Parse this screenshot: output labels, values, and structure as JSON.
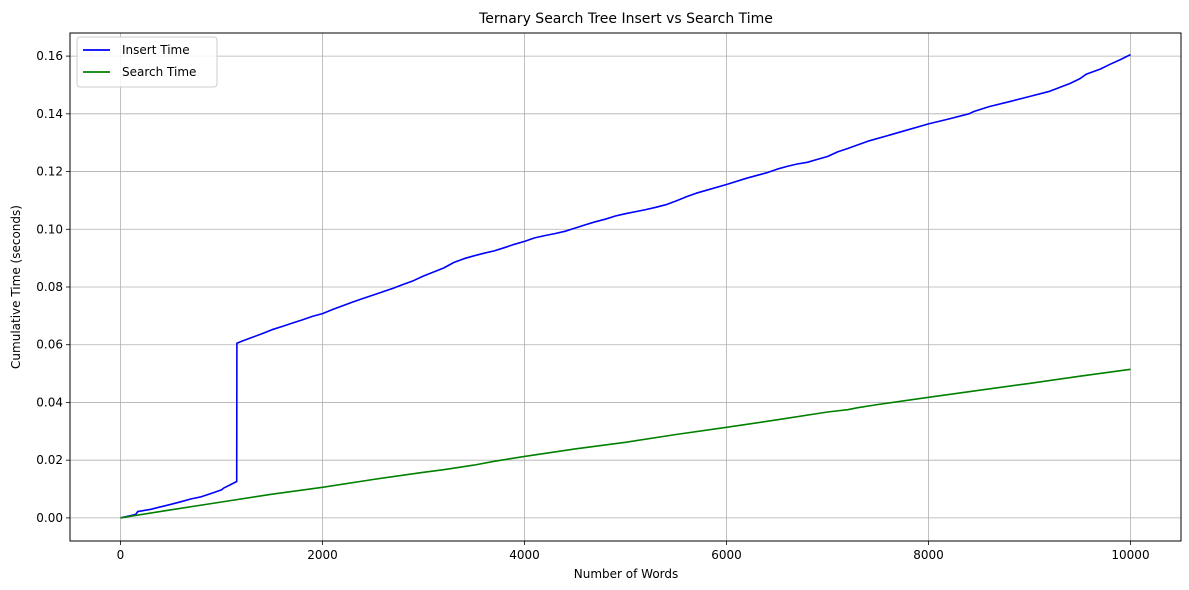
{
  "chart_data": {
    "type": "line",
    "title": "Ternary Search Tree Insert vs Search Time",
    "xlabel": "Number of Words",
    "ylabel": "Cumulative Time (seconds)",
    "xlim": [
      -500,
      10500
    ],
    "ylim": [
      -0.008,
      0.168
    ],
    "xticks": [
      0,
      2000,
      4000,
      6000,
      8000,
      10000
    ],
    "xtick_labels": [
      "0",
      "2000",
      "4000",
      "6000",
      "8000",
      "10000"
    ],
    "yticks": [
      0.0,
      0.02,
      0.04,
      0.06,
      0.08,
      0.1,
      0.12,
      0.14,
      0.16
    ],
    "ytick_labels": [
      "0.00",
      "0.02",
      "0.04",
      "0.06",
      "0.08",
      "0.10",
      "0.12",
      "0.14",
      "0.16"
    ],
    "grid": true,
    "legend_position": "top-left",
    "series": [
      {
        "name": "Insert Time",
        "color": "#0000ff",
        "x": [
          0,
          100,
          150,
          170,
          300,
          500,
          600,
          700,
          800,
          900,
          1000,
          1020,
          1100,
          1150,
          1152,
          1200,
          1300,
          1400,
          1500,
          1600,
          1700,
          1800,
          1900,
          2000,
          2100,
          2200,
          2300,
          2400,
          2500,
          2550,
          2700,
          2800,
          2900,
          3000,
          3100,
          3200,
          3300,
          3400,
          3500,
          3600,
          3700,
          3800,
          3900,
          4000,
          4100,
          4200,
          4300,
          4400,
          4500,
          4600,
          4700,
          4800,
          4900,
          5000,
          5200,
          5300,
          5400,
          5500,
          5600,
          5700,
          5800,
          6000,
          6200,
          6400,
          6500,
          6600,
          6700,
          6800,
          6900,
          7000,
          7100,
          7200,
          7400,
          7600,
          7800,
          8000,
          8200,
          8400,
          8450,
          8600,
          8800,
          9000,
          9200,
          9400,
          9500,
          9560,
          9700,
          9800,
          9900,
          10000
        ],
        "values": [
          0.0,
          0.0008,
          0.0012,
          0.0022,
          0.003,
          0.0047,
          0.0056,
          0.0066,
          0.0073,
          0.0085,
          0.0097,
          0.0103,
          0.0117,
          0.0126,
          0.0605,
          0.0612,
          0.0625,
          0.0638,
          0.0652,
          0.0663,
          0.0675,
          0.0686,
          0.0698,
          0.0708,
          0.0722,
          0.0735,
          0.0748,
          0.076,
          0.0772,
          0.0778,
          0.0796,
          0.0809,
          0.0822,
          0.0838,
          0.0852,
          0.0866,
          0.0885,
          0.0898,
          0.0908,
          0.0917,
          0.0925,
          0.0936,
          0.0948,
          0.0958,
          0.097,
          0.0978,
          0.0985,
          0.0993,
          0.1004,
          0.1015,
          0.1026,
          0.1035,
          0.1046,
          0.1054,
          0.1068,
          0.1076,
          0.1085,
          0.1098,
          0.1112,
          0.1125,
          0.1135,
          0.1155,
          0.1177,
          0.1196,
          0.1208,
          0.1218,
          0.1226,
          0.1232,
          0.1242,
          0.1252,
          0.1268,
          0.128,
          0.1305,
          0.1325,
          0.1345,
          0.1365,
          0.1382,
          0.14,
          0.1408,
          0.1425,
          0.1442,
          0.146,
          0.1478,
          0.1505,
          0.1522,
          0.1537,
          0.1555,
          0.1572,
          0.1588,
          0.1605
        ]
      },
      {
        "name": "Search Time",
        "color": "#008000",
        "x": [
          0,
          500,
          1000,
          1500,
          2000,
          2500,
          3000,
          3200,
          3500,
          3700,
          4000,
          4500,
          5000,
          5500,
          6000,
          6500,
          7000,
          7200,
          7300,
          7500,
          8000,
          8500,
          9000,
          9500,
          10000
        ],
        "values": [
          0.0,
          0.0028,
          0.0055,
          0.0082,
          0.0106,
          0.0133,
          0.0158,
          0.0167,
          0.0183,
          0.0196,
          0.0213,
          0.0239,
          0.0262,
          0.0289,
          0.0314,
          0.034,
          0.0367,
          0.0375,
          0.0382,
          0.0393,
          0.0418,
          0.0442,
          0.0466,
          0.0491,
          0.0515
        ]
      }
    ]
  }
}
